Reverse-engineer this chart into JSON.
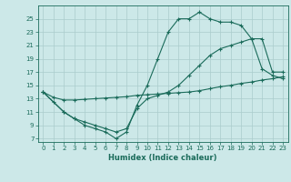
{
  "xlabel": "Humidex (Indice chaleur)",
  "bg_color": "#cce8e8",
  "grid_color": "#aacccc",
  "line_color": "#1a6b5a",
  "xlim": [
    -0.5,
    23.5
  ],
  "ylim": [
    6.5,
    27
  ],
  "xticks": [
    0,
    1,
    2,
    3,
    4,
    5,
    6,
    7,
    8,
    9,
    10,
    11,
    12,
    13,
    14,
    15,
    16,
    17,
    18,
    19,
    20,
    21,
    22,
    23
  ],
  "yticks": [
    7,
    9,
    11,
    13,
    15,
    17,
    19,
    21,
    23,
    25
  ],
  "line1_x": [
    0,
    1,
    2,
    3,
    4,
    5,
    6,
    7,
    8,
    9,
    10,
    11,
    12,
    13,
    14,
    15,
    16,
    17,
    18,
    19,
    20,
    21,
    22,
    23
  ],
  "line1_y": [
    14.0,
    12.5,
    11.0,
    10.0,
    9.0,
    8.5,
    8.0,
    7.0,
    8.0,
    12.0,
    15.0,
    19.0,
    23.0,
    25.0,
    25.0,
    26.0,
    25.0,
    24.5,
    24.5,
    24.0,
    22.0,
    17.5,
    16.5,
    16.0
  ],
  "line2_x": [
    0,
    2,
    3,
    4,
    5,
    6,
    7,
    8,
    9,
    10,
    11,
    12,
    13,
    14,
    15,
    16,
    17,
    18,
    19,
    20,
    21,
    22,
    23
  ],
  "line2_y": [
    14.0,
    11.0,
    10.0,
    9.5,
    9.0,
    8.5,
    8.0,
    8.5,
    11.5,
    13.0,
    13.5,
    14.0,
    15.0,
    16.5,
    18.0,
    19.5,
    20.5,
    21.0,
    21.5,
    22.0,
    22.0,
    17.0,
    17.0
  ],
  "line3_x": [
    0,
    1,
    2,
    3,
    4,
    5,
    6,
    7,
    8,
    9,
    10,
    11,
    12,
    13,
    14,
    15,
    16,
    17,
    18,
    19,
    20,
    21,
    22,
    23
  ],
  "line3_y": [
    14.0,
    13.2,
    12.8,
    12.8,
    12.9,
    13.0,
    13.1,
    13.2,
    13.3,
    13.5,
    13.6,
    13.7,
    13.8,
    13.9,
    14.0,
    14.2,
    14.5,
    14.8,
    15.0,
    15.3,
    15.5,
    15.8,
    16.0,
    16.3
  ]
}
